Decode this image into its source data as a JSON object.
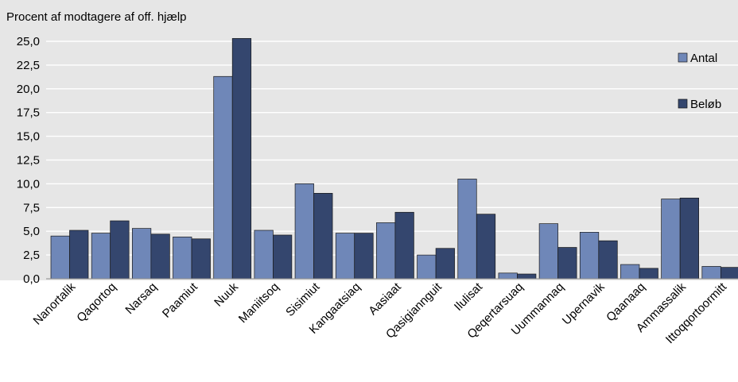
{
  "chart_data": {
    "type": "bar",
    "title": "Procent af modtagere af off. hjælp",
    "xlabel": "",
    "ylabel": "",
    "ylim": [
      0,
      25
    ],
    "yticks": [
      0,
      2.5,
      5,
      7.5,
      10,
      12.5,
      15,
      17.5,
      20,
      22.5,
      25
    ],
    "ytick_labels": [
      "0,0",
      "2,5",
      "5,0",
      "7,5",
      "10,0",
      "12,5",
      "15,0",
      "17,5",
      "20,0",
      "22,5",
      "25,0"
    ],
    "grid": true,
    "legend_position": "right",
    "categories": [
      "Nanortalik",
      "Qaqortoq",
      "Narsaq",
      "Paamiut",
      "Nuuk",
      "Maniitsoq",
      "Sisimiut",
      "Kangaatsiaq",
      "Aasiaat",
      "Qasigiannguit",
      "Ilulisat",
      "Qeqertarsuaq",
      "Uummannaq",
      "Upernavik",
      "Qaanaaq",
      "Ammassalik",
      "Ittoqqortoormitt"
    ],
    "series": [
      {
        "name": "Antal",
        "color": "#6f87b8",
        "values": [
          4.5,
          4.8,
          5.3,
          4.4,
          21.3,
          5.1,
          10.0,
          4.8,
          5.9,
          2.5,
          10.5,
          0.6,
          5.8,
          4.9,
          1.5,
          8.4,
          1.3
        ]
      },
      {
        "name": "Beløb",
        "color": "#34466e",
        "values": [
          5.1,
          6.1,
          4.7,
          4.2,
          25.3,
          4.6,
          9.0,
          4.8,
          7.0,
          3.2,
          6.8,
          0.5,
          3.3,
          4.0,
          1.1,
          8.5,
          1.2
        ]
      }
    ],
    "plot_background": "#e6e6e6",
    "grid_color": "#ffffff"
  }
}
